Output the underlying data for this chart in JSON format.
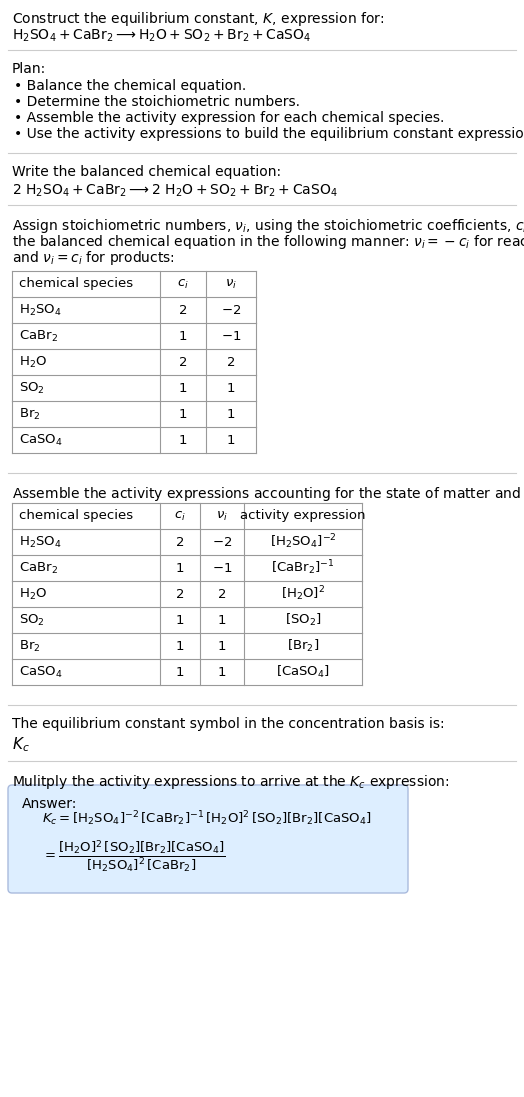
{
  "bg_color": "#ffffff",
  "text_color": "#000000",
  "table_line_color": "#999999",
  "answer_box_color": "#ddeeff",
  "answer_box_edge": "#aabbdd",
  "title_line1": "Construct the equilibrium constant, $K$, expression for:",
  "title_line2": "$\\mathrm{H_2SO_4 + CaBr_2 \\longrightarrow H_2O + SO_2 + Br_2 + CaSO_4}$",
  "plan_header": "Plan:",
  "plan_items": [
    "• Balance the chemical equation.",
    "• Determine the stoichiometric numbers.",
    "• Assemble the activity expression for each chemical species.",
    "• Use the activity expressions to build the equilibrium constant expression."
  ],
  "balanced_header": "Write the balanced chemical equation:",
  "balanced_eq": "$\\mathrm{2\\ H_2SO_4 + CaBr_2 \\longrightarrow 2\\ H_2O + SO_2 + Br_2 + CaSO_4}$",
  "stoich_intro_lines": [
    "Assign stoichiometric numbers, $\\nu_i$, using the stoichiometric coefficients, $c_i$, from",
    "the balanced chemical equation in the following manner: $\\nu_i = -c_i$ for reactants",
    "and $\\nu_i = c_i$ for products:"
  ],
  "table1_headers": [
    "chemical species",
    "$c_i$",
    "$\\nu_i$"
  ],
  "table1_rows": [
    [
      "$\\mathrm{H_2SO_4}$",
      "2",
      "$-2$"
    ],
    [
      "$\\mathrm{CaBr_2}$",
      "1",
      "$-1$"
    ],
    [
      "$\\mathrm{H_2O}$",
      "2",
      "2"
    ],
    [
      "$\\mathrm{SO_2}$",
      "1",
      "1"
    ],
    [
      "$\\mathrm{Br_2}$",
      "1",
      "1"
    ],
    [
      "$\\mathrm{CaSO_4}$",
      "1",
      "1"
    ]
  ],
  "activity_intro": "Assemble the activity expressions accounting for the state of matter and $\\nu_i$:",
  "table2_headers": [
    "chemical species",
    "$c_i$",
    "$\\nu_i$",
    "activity expression"
  ],
  "table2_rows": [
    [
      "$\\mathrm{H_2SO_4}$",
      "2",
      "$-2$",
      "$[\\mathrm{H_2SO_4}]^{-2}$"
    ],
    [
      "$\\mathrm{CaBr_2}$",
      "1",
      "$-1$",
      "$[\\mathrm{CaBr_2}]^{-1}$"
    ],
    [
      "$\\mathrm{H_2O}$",
      "2",
      "2",
      "$[\\mathrm{H_2O}]^{2}$"
    ],
    [
      "$\\mathrm{SO_2}$",
      "1",
      "1",
      "$[\\mathrm{SO_2}]$"
    ],
    [
      "$\\mathrm{Br_2}$",
      "1",
      "1",
      "$[\\mathrm{Br_2}]$"
    ],
    [
      "$\\mathrm{CaSO_4}$",
      "1",
      "1",
      "$[\\mathrm{CaSO_4}]$"
    ]
  ],
  "kc_header": "The equilibrium constant symbol in the concentration basis is:",
  "kc_symbol": "$K_c$",
  "multiply_header": "Mulitply the activity expressions to arrive at the $K_c$ expression:",
  "answer_label": "Answer:",
  "answer_line1": "$K_c = [\\mathrm{H_2SO_4}]^{-2}\\,[\\mathrm{CaBr_2}]^{-1}\\,[\\mathrm{H_2O}]^{2}\\,[\\mathrm{SO_2}][\\mathrm{Br_2}][\\mathrm{CaSO_4}]$",
  "answer_line2": "$= \\dfrac{[\\mathrm{H_2O}]^{2}\\,[\\mathrm{SO_2}][\\mathrm{Br_2}][\\mathrm{CaSO_4}]}{[\\mathrm{H_2SO_4}]^{2}\\,[\\mathrm{CaBr_2}]}$"
}
